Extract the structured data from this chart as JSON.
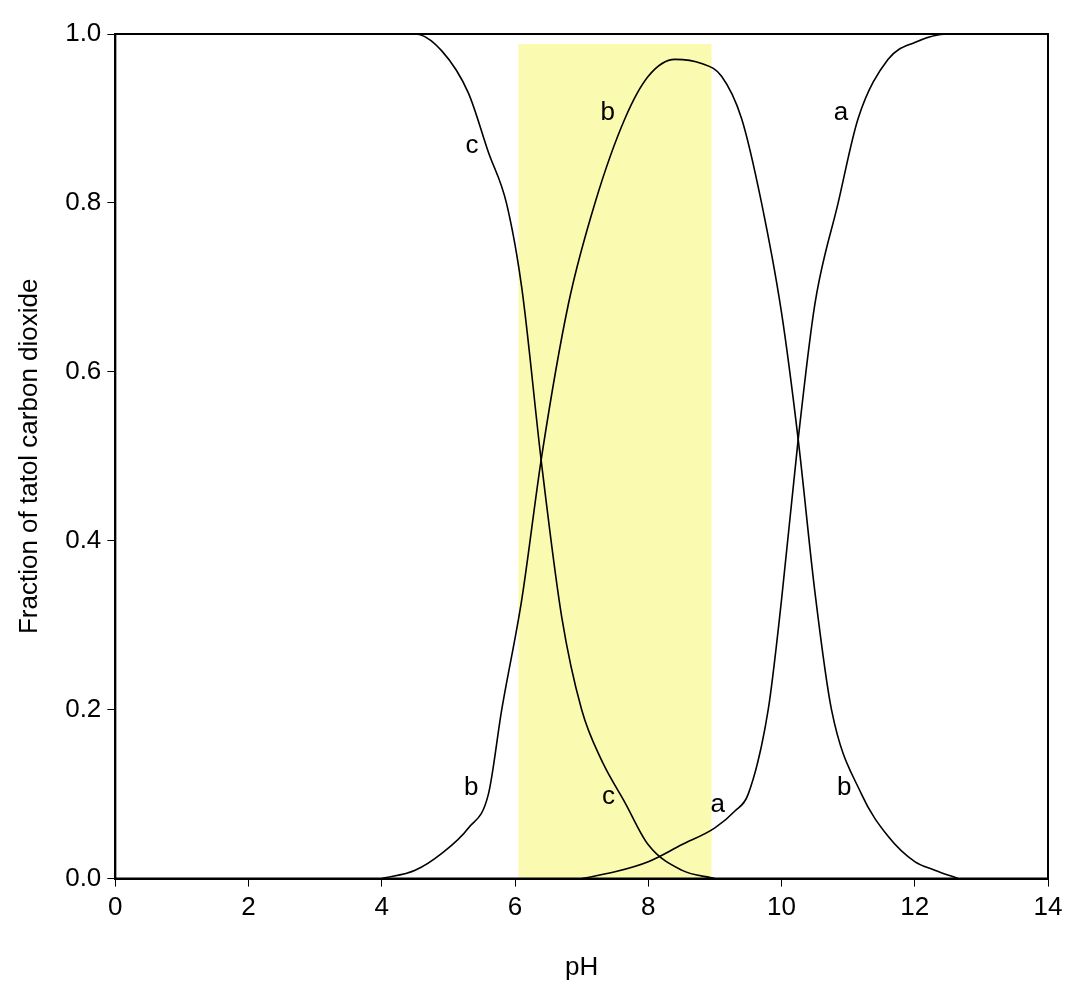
{
  "chart_data": {
    "type": "line",
    "xlabel": "pH",
    "ylabel": "Fraction of tatol carbon dioxide",
    "xlim": [
      0,
      14
    ],
    "xticks": [
      0,
      2,
      4,
      6,
      8,
      10,
      12,
      14
    ],
    "ylim": [
      0,
      1
    ],
    "yticks": [
      {
        "value": 0,
        "label": "0.0"
      },
      0.2,
      0.4,
      0.6,
      0.8,
      {
        "value": 1,
        "label": "1.0"
      }
    ],
    "grid": false,
    "series": [
      {
        "color": "#000000",
        "x": [
          0,
          4.5,
          4.9,
          5.3,
          5.6,
          5.87,
          6.1,
          6.4,
          6.7,
          7.0,
          7.3,
          7.65,
          8.0,
          8.5,
          9.0
        ],
        "values": [
          1,
          1,
          0.98,
          0.93,
          0.86,
          0.8,
          0.7,
          0.49,
          0.31,
          0.2,
          0.14,
          0.09,
          0.04,
          0.01,
          0
        ]
      },
      {
        "color": "#000000",
        "x": [
          4.0,
          4.5,
          4.9,
          5.3,
          5.6,
          5.8,
          6.1,
          6.4,
          6.8,
          7.2,
          7.65,
          8.0,
          8.4,
          8.8,
          9.1,
          9.4,
          9.7,
          10.0,
          10.25,
          10.5,
          10.75,
          11.2,
          11.6,
          12.0,
          12.3,
          12.65
        ],
        "values": [
          0,
          0.01,
          0.03,
          0.06,
          0.1,
          0.2,
          0.33,
          0.5,
          0.68,
          0.8,
          0.9,
          0.95,
          0.97,
          0.965,
          0.95,
          0.9,
          0.8,
          0.67,
          0.52,
          0.34,
          0.2,
          0.1,
          0.05,
          0.02,
          0.01,
          0
        ]
      },
      {
        "color": "#000000",
        "x": [
          7.0,
          7.5,
          8.0,
          8.5,
          9.0,
          9.3,
          9.5,
          9.8,
          10.0,
          10.25,
          10.5,
          10.85,
          11.15,
          11.6,
          12.0,
          12.5,
          14
        ],
        "values": [
          0,
          0.008,
          0.02,
          0.04,
          0.06,
          0.08,
          0.1,
          0.2,
          0.33,
          0.52,
          0.68,
          0.8,
          0.9,
          0.97,
          0.99,
          1,
          1
        ]
      }
    ],
    "bands": [
      {
        "axis": "x",
        "from": 6.05,
        "to": 8.95,
        "color": "#fafab0"
      }
    ],
    "annotations": [
      {
        "text": "c",
        "x": 5.6,
        "y": 0.86
      },
      {
        "text": "b",
        "x": 7.65,
        "y": 0.9
      },
      {
        "text": "a",
        "x": 11.15,
        "y": 0.9
      },
      {
        "text": "b",
        "x": 5.6,
        "y": 0.1
      },
      {
        "text": "c",
        "x": 7.65,
        "y": 0.09
      },
      {
        "text": "a",
        "x": 9.3,
        "y": 0.08
      },
      {
        "text": "b",
        "x": 11.2,
        "y": 0.1
      }
    ]
  }
}
